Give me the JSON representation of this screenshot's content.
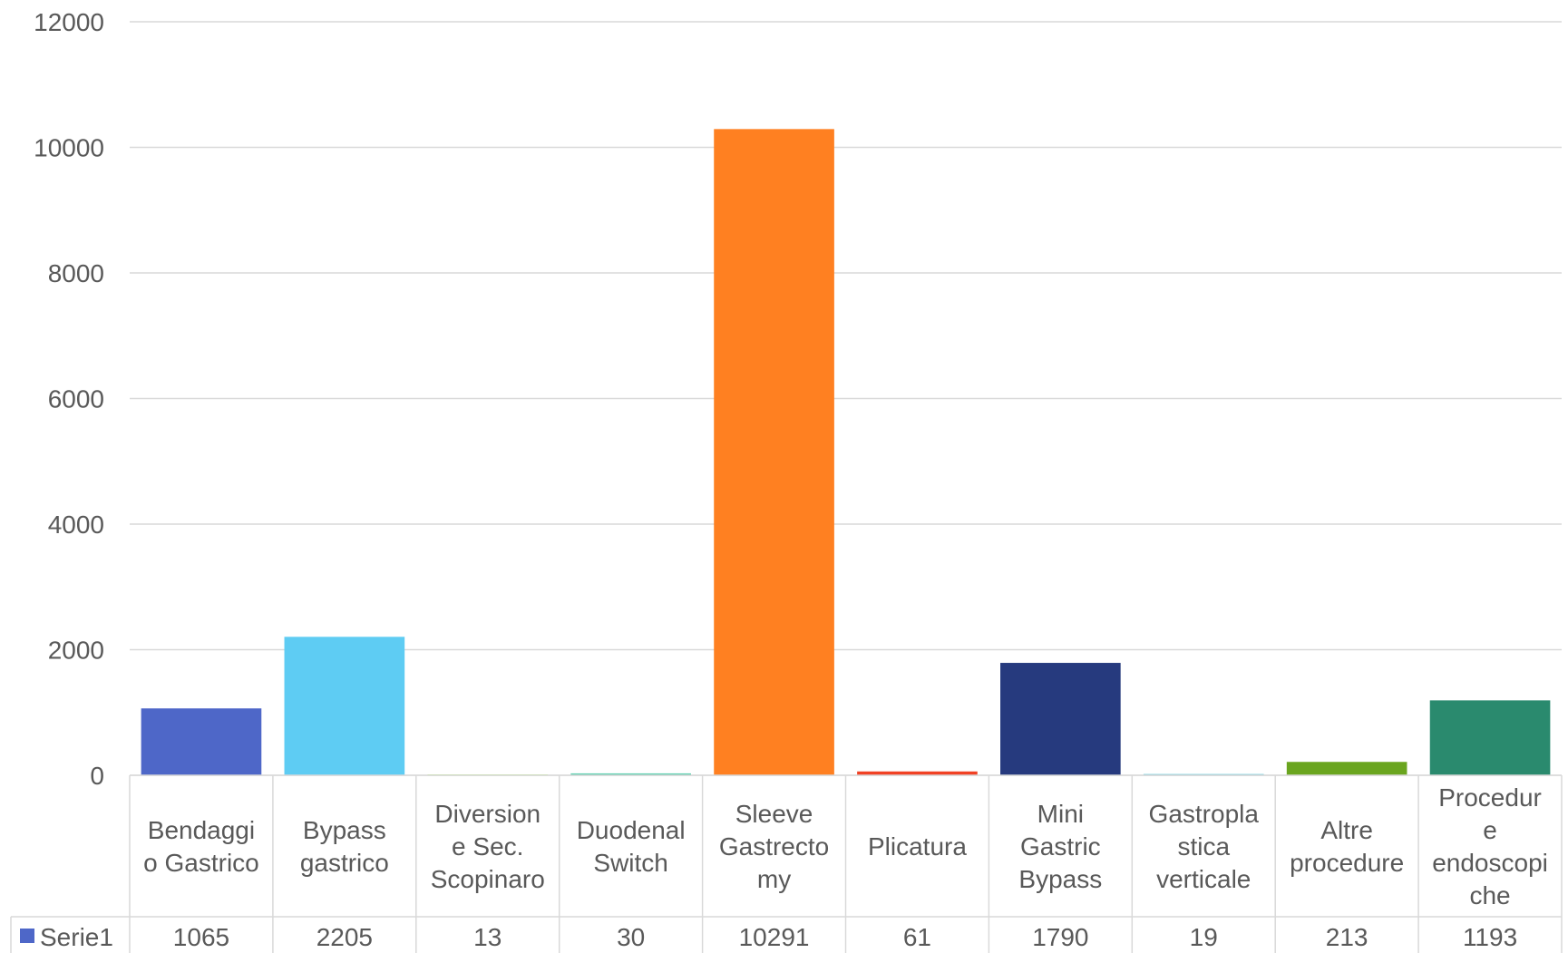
{
  "chart_data": {
    "type": "bar",
    "title": "",
    "xlabel": "",
    "ylabel": "",
    "ylim": [
      0,
      12000
    ],
    "y_ticks": [
      "0",
      "2000",
      "4000",
      "6000",
      "8000",
      "10000",
      "12000"
    ],
    "grid": true,
    "legend": "data-table-left",
    "categories": [
      "Bendaggio Gastrico",
      "Bypass gastrico",
      "Diversione Sec. Scopinaro",
      "Duodenal Switch",
      "Sleeve Gastrectomy",
      "Plicatura",
      "Mini Gastric Bypass",
      "Gastroplastica verticale",
      "Altre procedure",
      "Procedure endoscopiche"
    ],
    "category_label_lines": [
      [
        "Bendaggi",
        "o Gastrico"
      ],
      [
        "Bypass",
        "gastrico"
      ],
      [
        "Diversion",
        "e Sec.",
        "Scopinaro"
      ],
      [
        "Duodenal",
        "Switch"
      ],
      [
        "Sleeve",
        "Gastrecto",
        "my"
      ],
      [
        "Plicatura"
      ],
      [
        "Mini",
        "Gastric",
        "Bypass"
      ],
      [
        "Gastropla",
        "stica",
        "verticale"
      ],
      [
        "Altre",
        "procedure"
      ],
      [
        "Procedur",
        "e",
        "endoscopi",
        "che"
      ]
    ],
    "series": [
      {
        "name": "Serie1",
        "legend_color": "#4e67c8",
        "values": [
          1065,
          2205,
          13,
          30,
          10291,
          61,
          1790,
          19,
          213,
          1193
        ]
      }
    ],
    "bar_colors": [
      "#4e67c8",
      "#5eccf3",
      "#a7ea52",
      "#5dceaf",
      "#ff8021",
      "#f14124",
      "#263a7e",
      "#5bc2d8",
      "#6aa51f",
      "#2a8a6e"
    ]
  }
}
